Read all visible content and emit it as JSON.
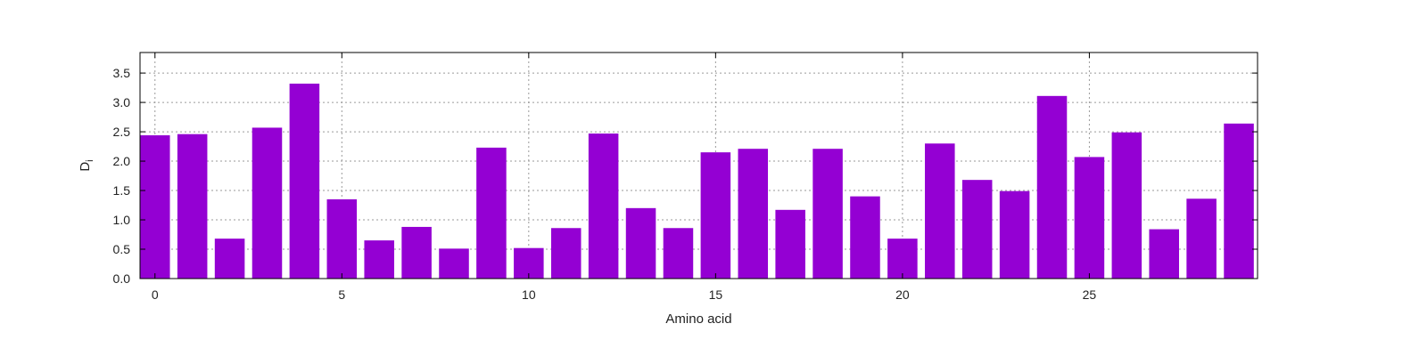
{
  "chart_data": {
    "type": "bar",
    "xlabel": "Amino acid",
    "ylabel_main": "D",
    "ylabel_sub": "i",
    "x": [
      0,
      1,
      2,
      3,
      4,
      5,
      6,
      7,
      8,
      9,
      10,
      11,
      12,
      13,
      14,
      15,
      16,
      17,
      18,
      19,
      20,
      21,
      22,
      23,
      24,
      25,
      26,
      27,
      28,
      29
    ],
    "values": [
      2.44,
      2.46,
      0.68,
      2.57,
      3.32,
      1.35,
      0.65,
      0.88,
      0.51,
      2.23,
      0.52,
      0.86,
      2.47,
      1.2,
      0.86,
      2.15,
      2.21,
      1.17,
      2.21,
      1.4,
      0.68,
      2.3,
      1.68,
      1.49,
      3.11,
      2.07,
      2.49,
      0.84,
      1.36,
      2.64
    ],
    "xlim": [
      -0.4,
      29.5
    ],
    "ylim": [
      0,
      3.85
    ],
    "xticks": [
      0,
      5,
      10,
      15,
      20,
      25
    ],
    "yticks": [
      0,
      0.5,
      1,
      1.5,
      2,
      2.5,
      3,
      3.5
    ],
    "ytick_labels": [
      "0.0",
      "0.5",
      "1.0",
      "1.5",
      "2.0",
      "2.5",
      "3.0",
      "3.5"
    ],
    "grid": true,
    "bar_color": "#9400d3",
    "legend": "none"
  }
}
